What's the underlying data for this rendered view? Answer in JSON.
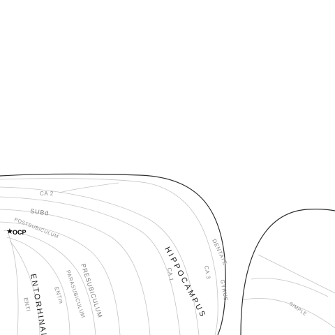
{
  "diagram": {
    "regions": {
      "ca2": "CA 2",
      "subd": "SUBd",
      "postsubiculum": "POSTSUBICULUM",
      "ocp_marker": "★",
      "ocp": "OCP",
      "hippocampus": "HIPPOCAMPUS",
      "ca1": "CA 1",
      "ca3": "CA 3",
      "dentate": "DENTATE",
      "gyrus": "GYRUS",
      "presubiculum": "PRESUBICULUM",
      "parasubiculum": "PARASUBICULUM",
      "entorhinal": "ENTORHINAL",
      "entm": "ENTm",
      "entl": "ENTl",
      "simple": "SIMPLE"
    },
    "colors": {
      "outline_dark": "#2b2b2b",
      "outline_light": "#bdbdbd",
      "label_gray": "#8a8a8a",
      "label_dark": "#1a1a1a"
    }
  }
}
